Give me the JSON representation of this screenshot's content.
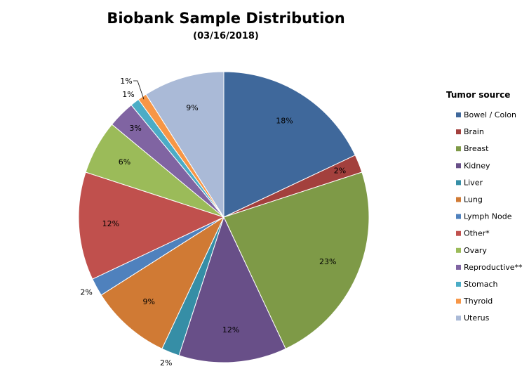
{
  "chart_data": {
    "type": "pie",
    "title": "Biobank Sample Distribution",
    "subtitle": "(03/16/2018)",
    "legend_title": "Tumor source",
    "legend_position": "right",
    "slices": [
      {
        "name": "Bowel / Colon",
        "value": 18,
        "label": "18%",
        "color": "#3F689B"
      },
      {
        "name": "Brain",
        "value": 2,
        "label": "2%",
        "color": "#A3403D"
      },
      {
        "name": "Breast",
        "value": 23,
        "label": "23%",
        "color": "#7E9A47"
      },
      {
        "name": "Kidney",
        "value": 12,
        "label": "12%",
        "color": "#684F88"
      },
      {
        "name": "Liver",
        "value": 2,
        "label": "2%",
        "color": "#368EA6"
      },
      {
        "name": "Lung",
        "value": 9,
        "label": "9%",
        "color": "#D07A34"
      },
      {
        "name": "Lymph Node",
        "value": 2,
        "label": "2%",
        "color": "#4F81BD"
      },
      {
        "name": "Other*",
        "value": 12,
        "label": "12%",
        "color": "#C0504D"
      },
      {
        "name": "Ovary",
        "value": 6,
        "label": "6%",
        "color": "#9BBB59"
      },
      {
        "name": "Reproductive**",
        "value": 3,
        "label": "3%",
        "color": "#8064A2"
      },
      {
        "name": "Stomach",
        "value": 1,
        "label": "1%",
        "color": "#4BACC6"
      },
      {
        "name": "Thyroid",
        "value": 1,
        "label": "1%",
        "color": "#F79646"
      },
      {
        "name": "Uterus",
        "value": 9,
        "label": "9%",
        "color": "#AABAD7"
      }
    ]
  }
}
